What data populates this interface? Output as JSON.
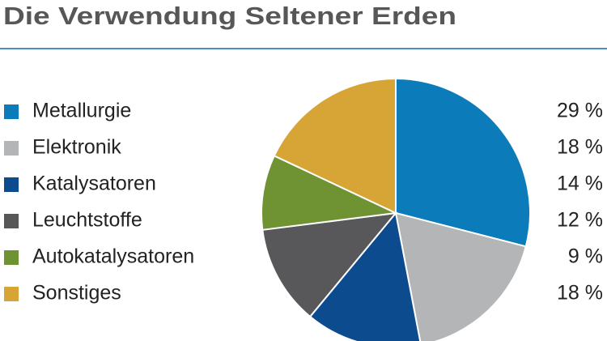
{
  "chart_data": {
    "type": "pie",
    "title": "Die Verwendung Seltener Erden",
    "categories": [
      "Metallurgie",
      "Elektronik",
      "Katalysatoren",
      "Leuchtstoffe",
      "Autokatalysatoren",
      "Sonstiges"
    ],
    "values": [
      29,
      18,
      14,
      12,
      9,
      18
    ],
    "value_labels": [
      "29 %",
      "18 %",
      "14 %",
      "12 %",
      "9 %",
      "18 %"
    ],
    "colors": [
      "#0b7bb9",
      "#b4b5b7",
      "#0d4b8f",
      "#58585b",
      "#6f9332",
      "#d7a536"
    ]
  }
}
